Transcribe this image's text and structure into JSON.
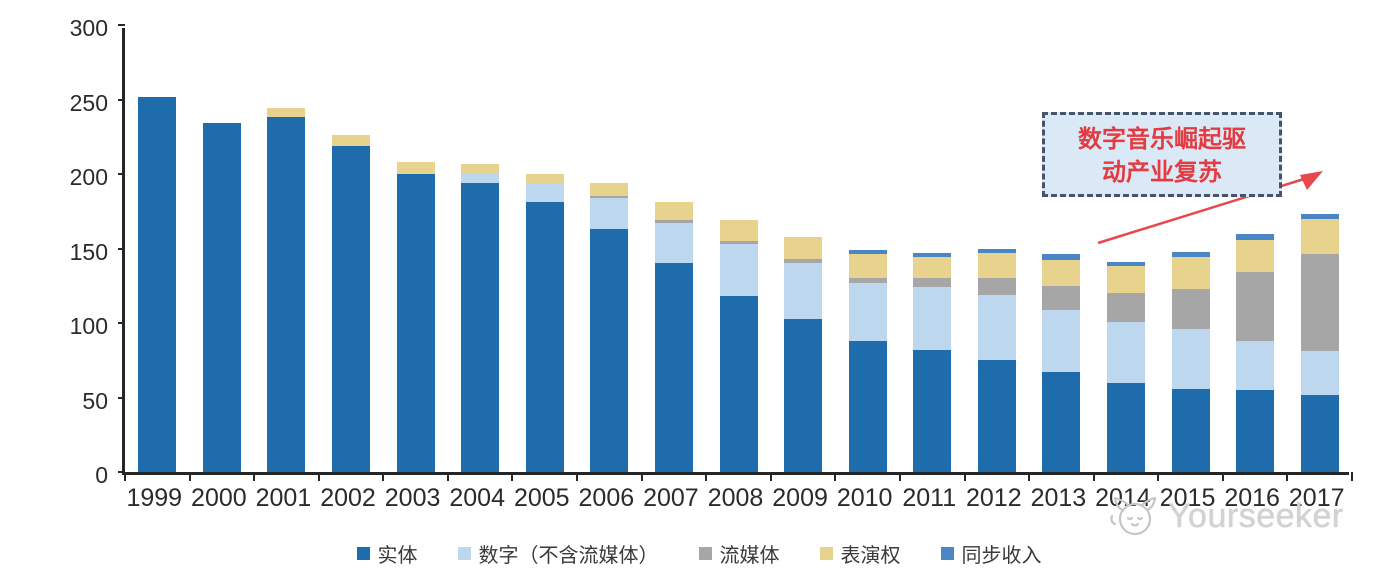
{
  "chart_data": {
    "type": "bar",
    "stacked": true,
    "title": "",
    "xlabel": "",
    "ylabel": "",
    "ylim": [
      0,
      300
    ],
    "y_ticks": [
      0,
      50,
      100,
      150,
      200,
      250,
      300
    ],
    "grid": false,
    "legend_position": "bottom",
    "categories": [
      "1999",
      "2000",
      "2001",
      "2002",
      "2003",
      "2004",
      "2005",
      "2006",
      "2007",
      "2008",
      "2009",
      "2010",
      "2011",
      "2012",
      "2013",
      "2014",
      "2015",
      "2016",
      "2017"
    ],
    "series": [
      {
        "name": "实体",
        "color": "#1f6cac",
        "values": [
          252,
          234,
          238,
          219,
          200,
          194,
          181,
          163,
          140,
          118,
          103,
          88,
          82,
          75,
          67,
          60,
          56,
          55,
          52
        ]
      },
      {
        "name": "数字（不含流媒体）",
        "color": "#bdd7ee",
        "values": [
          0,
          0,
          0,
          0,
          0,
          6,
          12,
          21,
          27,
          35,
          37,
          39,
          42,
          44,
          42,
          41,
          40,
          33,
          29
        ]
      },
      {
        "name": "流媒体",
        "color": "#a6a6a6",
        "values": [
          0,
          0,
          0,
          0,
          0,
          0,
          0,
          1,
          2,
          2,
          3,
          3,
          6,
          11,
          16,
          19,
          27,
          46,
          65
        ]
      },
      {
        "name": "表演权",
        "color": "#e8d38e",
        "values": [
          0,
          0,
          6,
          7,
          8,
          7,
          7,
          9,
          12,
          14,
          15,
          16,
          14,
          17,
          17,
          18,
          21,
          22,
          24
        ]
      },
      {
        "name": "同步收入",
        "color": "#4a86c6",
        "values": [
          0,
          0,
          0,
          0,
          0,
          0,
          0,
          0,
          0,
          0,
          0,
          3,
          3,
          3,
          4,
          3,
          4,
          4,
          3
        ]
      }
    ]
  },
  "annotation": {
    "line1": "数字音乐崛起驱",
    "line2": "动产业复苏",
    "box_fill": "#dbe8f6",
    "box_border_color": "#44546a",
    "text_color": "#e23b41",
    "arrow_color": "#e8474b"
  },
  "watermark": {
    "text": "Yourseeker",
    "logo": "cat-logo-icon",
    "color": "#d2d2d2"
  },
  "axis": {
    "line_color": "#262626",
    "label_color": "#2b2b2b"
  }
}
